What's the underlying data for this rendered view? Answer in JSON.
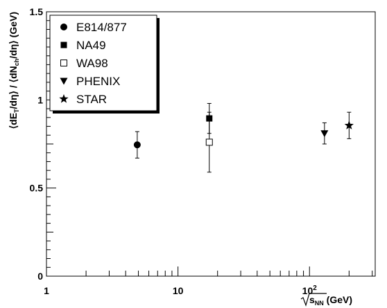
{
  "chart_data": {
    "type": "scatter",
    "title": "",
    "xscale": "log",
    "xlim": [
      1,
      316
    ],
    "ylim": [
      0,
      1.5
    ],
    "grid": false,
    "legend_position": "top-left",
    "xlabel_parts": {
      "base": "s",
      "sub": "NN",
      "unit": " (GeV)"
    },
    "ylabel_parts": [
      "⟨dE",
      "T",
      "/dη⟩ / ⟨dN",
      "ch",
      "/dη⟩ (GeV)"
    ],
    "x_tick_labels": [
      {
        "x": 1,
        "text": "1"
      },
      {
        "x": 10,
        "text": "10"
      },
      {
        "x": 100,
        "base": "10",
        "sup": "2"
      }
    ],
    "y_tick_labels": [
      {
        "y": 0,
        "text": "0"
      },
      {
        "y": 0.5,
        "text": "0.5"
      },
      {
        "y": 1,
        "text": "1"
      },
      {
        "y": 1.5,
        "text": "1.5"
      }
    ],
    "series": [
      {
        "name": "E814/877",
        "marker": "circle",
        "points": [
          {
            "x": 4.9,
            "y": 0.745,
            "err": 0.075
          }
        ]
      },
      {
        "name": "NA49",
        "marker": "square",
        "points": [
          {
            "x": 17.3,
            "y": 0.895,
            "err": 0.085
          }
        ]
      },
      {
        "name": "WA98",
        "marker": "open-square",
        "points": [
          {
            "x": 17.3,
            "y": 0.76,
            "err": 0.17
          }
        ]
      },
      {
        "name": "PHENIX",
        "marker": "triangle-down",
        "points": [
          {
            "x": 130,
            "y": 0.81,
            "err": 0.06
          }
        ]
      },
      {
        "name": "STAR",
        "marker": "star",
        "points": [
          {
            "x": 200,
            "y": 0.855,
            "err": 0.075
          }
        ]
      }
    ]
  }
}
